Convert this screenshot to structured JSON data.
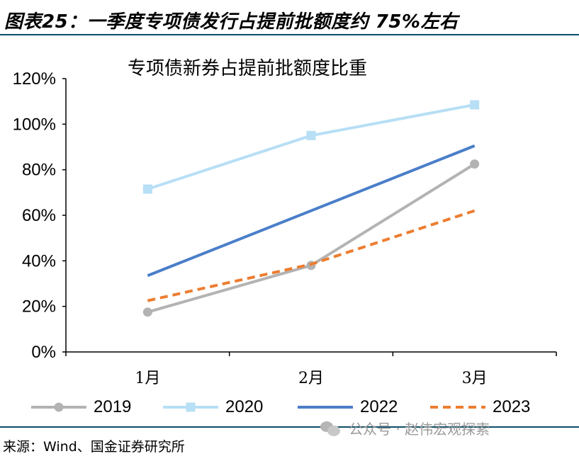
{
  "figure_title": "图表25：一季度专项债发行占提前批额度约 75%左右",
  "source": "来源：Wind、国金证券研究所",
  "watermark": "公众号 · 赵伟宏观探索",
  "watermark_icon": "wechat-icon",
  "chart_data": {
    "type": "line",
    "title": "专项债新券占提前批额度比重",
    "xlabel": "",
    "ylabel": "",
    "categories": [
      "1月",
      "2月",
      "3月"
    ],
    "ylim": [
      0,
      120
    ],
    "yticks": [
      0,
      20,
      40,
      60,
      80,
      100,
      120
    ],
    "ytick_labels": [
      "0%",
      "20%",
      "40%",
      "60%",
      "80%",
      "100%",
      "120%"
    ],
    "grid": false,
    "legend_position": "bottom",
    "series": [
      {
        "name": "2019",
        "values": [
          17.5,
          38,
          82.5
        ],
        "color": "#b3b3b3",
        "style": "solid",
        "marker": "circle"
      },
      {
        "name": "2020",
        "values": [
          71.5,
          95,
          108.5
        ],
        "color": "#b7dff5",
        "style": "solid",
        "marker": "square"
      },
      {
        "name": "2022",
        "values": [
          33.5,
          null,
          90.5
        ],
        "color": "#4a7ec9",
        "style": "solid",
        "marker": "none"
      },
      {
        "name": "2023",
        "values": [
          22.5,
          38.5,
          62
        ],
        "color": "#ed7d31",
        "style": "dashed",
        "marker": "none"
      }
    ]
  }
}
